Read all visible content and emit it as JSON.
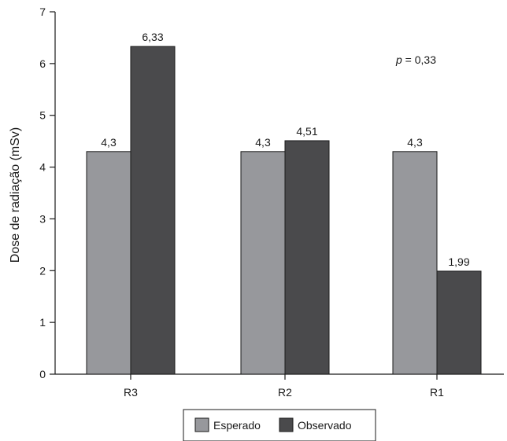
{
  "chart_data": {
    "type": "bar",
    "categories": [
      "R3",
      "R2",
      "R1"
    ],
    "series": [
      {
        "name": "Esperado",
        "values": [
          4.3,
          4.3,
          4.3
        ],
        "labels": [
          "4,3",
          "4,3",
          "4,3"
        ],
        "color": "#97989c"
      },
      {
        "name": "Observado",
        "values": [
          6.33,
          4.51,
          1.99
        ],
        "labels": [
          "6,33",
          "4,51",
          "1,99"
        ],
        "color": "#4a4a4c"
      }
    ],
    "ylabel": "Dose de radiação (mSv)",
    "xlabel": "",
    "ylim": [
      0,
      7
    ],
    "yticks": [
      0,
      1,
      2,
      3,
      4,
      5,
      6,
      7
    ],
    "annotation": {
      "italic": "p",
      "rest": " = 0,33"
    },
    "legend_position": "bottom-center",
    "grid": false
  }
}
